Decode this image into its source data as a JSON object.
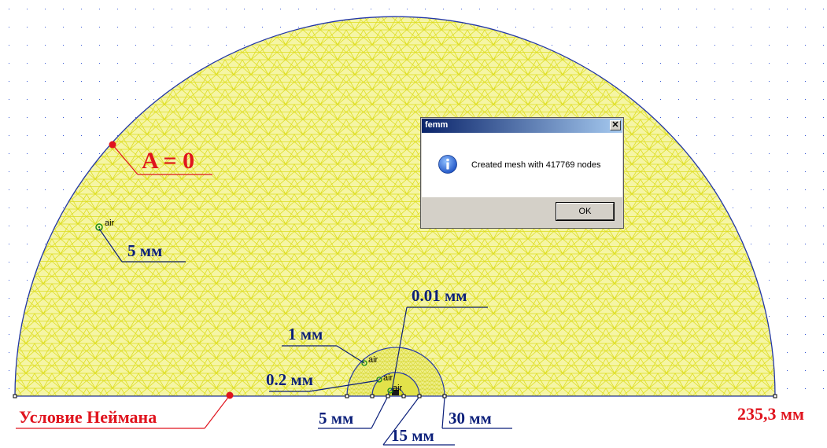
{
  "dialog": {
    "title": "femm",
    "close_glyph": "✕",
    "icon": "info-icon",
    "message": "Created mesh with 417769 nodes",
    "ok_label": "OK"
  },
  "labels": {
    "a_zero": "A = 0",
    "outer_5mm": "5 мм",
    "mm_001": "0.01 мм",
    "mm_1": "1 мм",
    "mm_02": "0.2 мм",
    "neumann": "Условие Неймана",
    "bottom_5mm": "5 мм",
    "mm_15": "15 мм",
    "mm_30": "30 мм",
    "radius": "235,3 мм"
  },
  "block_labels": {
    "outer": "air",
    "mid": "air",
    "inner1": "air",
    "inner2": "air"
  },
  "colors": {
    "mesh": "#dede1f",
    "mesh_fill": "#f5f5a5",
    "boundary": "#2236a8",
    "label_blue": "#0b1f7a",
    "label_red": "#e0141e"
  }
}
